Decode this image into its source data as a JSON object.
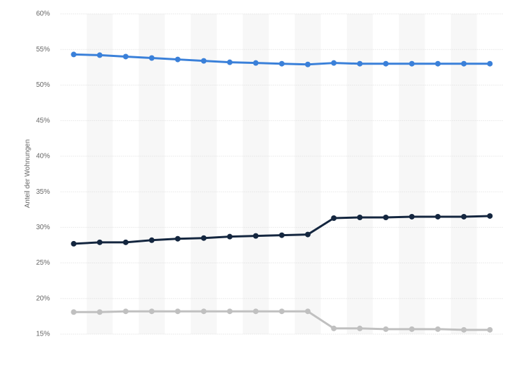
{
  "chart_data": {
    "type": "line",
    "y_label": "Anteil der Wohnungen",
    "categories": [
      null,
      null,
      null,
      null,
      null,
      null,
      null,
      null,
      null,
      null,
      null,
      null,
      null,
      null,
      null,
      null,
      null
    ],
    "series": [
      {
        "color": "#3a80d9",
        "values": [
          54.3,
          54.2,
          54.0,
          53.8,
          53.6,
          53.4,
          53.2,
          53.1,
          53.0,
          52.9,
          53.1,
          53.0,
          53.0,
          53.0,
          53.0,
          53.0,
          53.0
        ]
      },
      {
        "color": "#14263f",
        "values": [
          27.7,
          27.9,
          27.9,
          28.2,
          28.4,
          28.5,
          28.7,
          28.8,
          28.9,
          29.0,
          31.3,
          31.4,
          31.4,
          31.5,
          31.5,
          31.5,
          31.6
        ]
      },
      {
        "color": "#c0c0c0",
        "values": [
          18.1,
          18.1,
          18.2,
          18.2,
          18.2,
          18.2,
          18.2,
          18.2,
          18.2,
          18.2,
          15.8,
          15.8,
          15.7,
          15.7,
          15.7,
          15.6,
          15.6
        ]
      }
    ],
    "ylim": [
      15,
      60
    ],
    "yticks": [
      {
        "value": 15,
        "label": "15%"
      },
      {
        "value": 20,
        "label": "20%"
      },
      {
        "value": 25,
        "label": "25%"
      },
      {
        "value": 30,
        "label": "30%"
      },
      {
        "value": 35,
        "label": "35%"
      },
      {
        "value": 40,
        "label": "40%"
      },
      {
        "value": 45,
        "label": "45%"
      },
      {
        "value": 50,
        "label": "50%"
      },
      {
        "value": 55,
        "label": "55%"
      },
      {
        "value": 60,
        "label": "60%"
      }
    ],
    "grid": true
  }
}
